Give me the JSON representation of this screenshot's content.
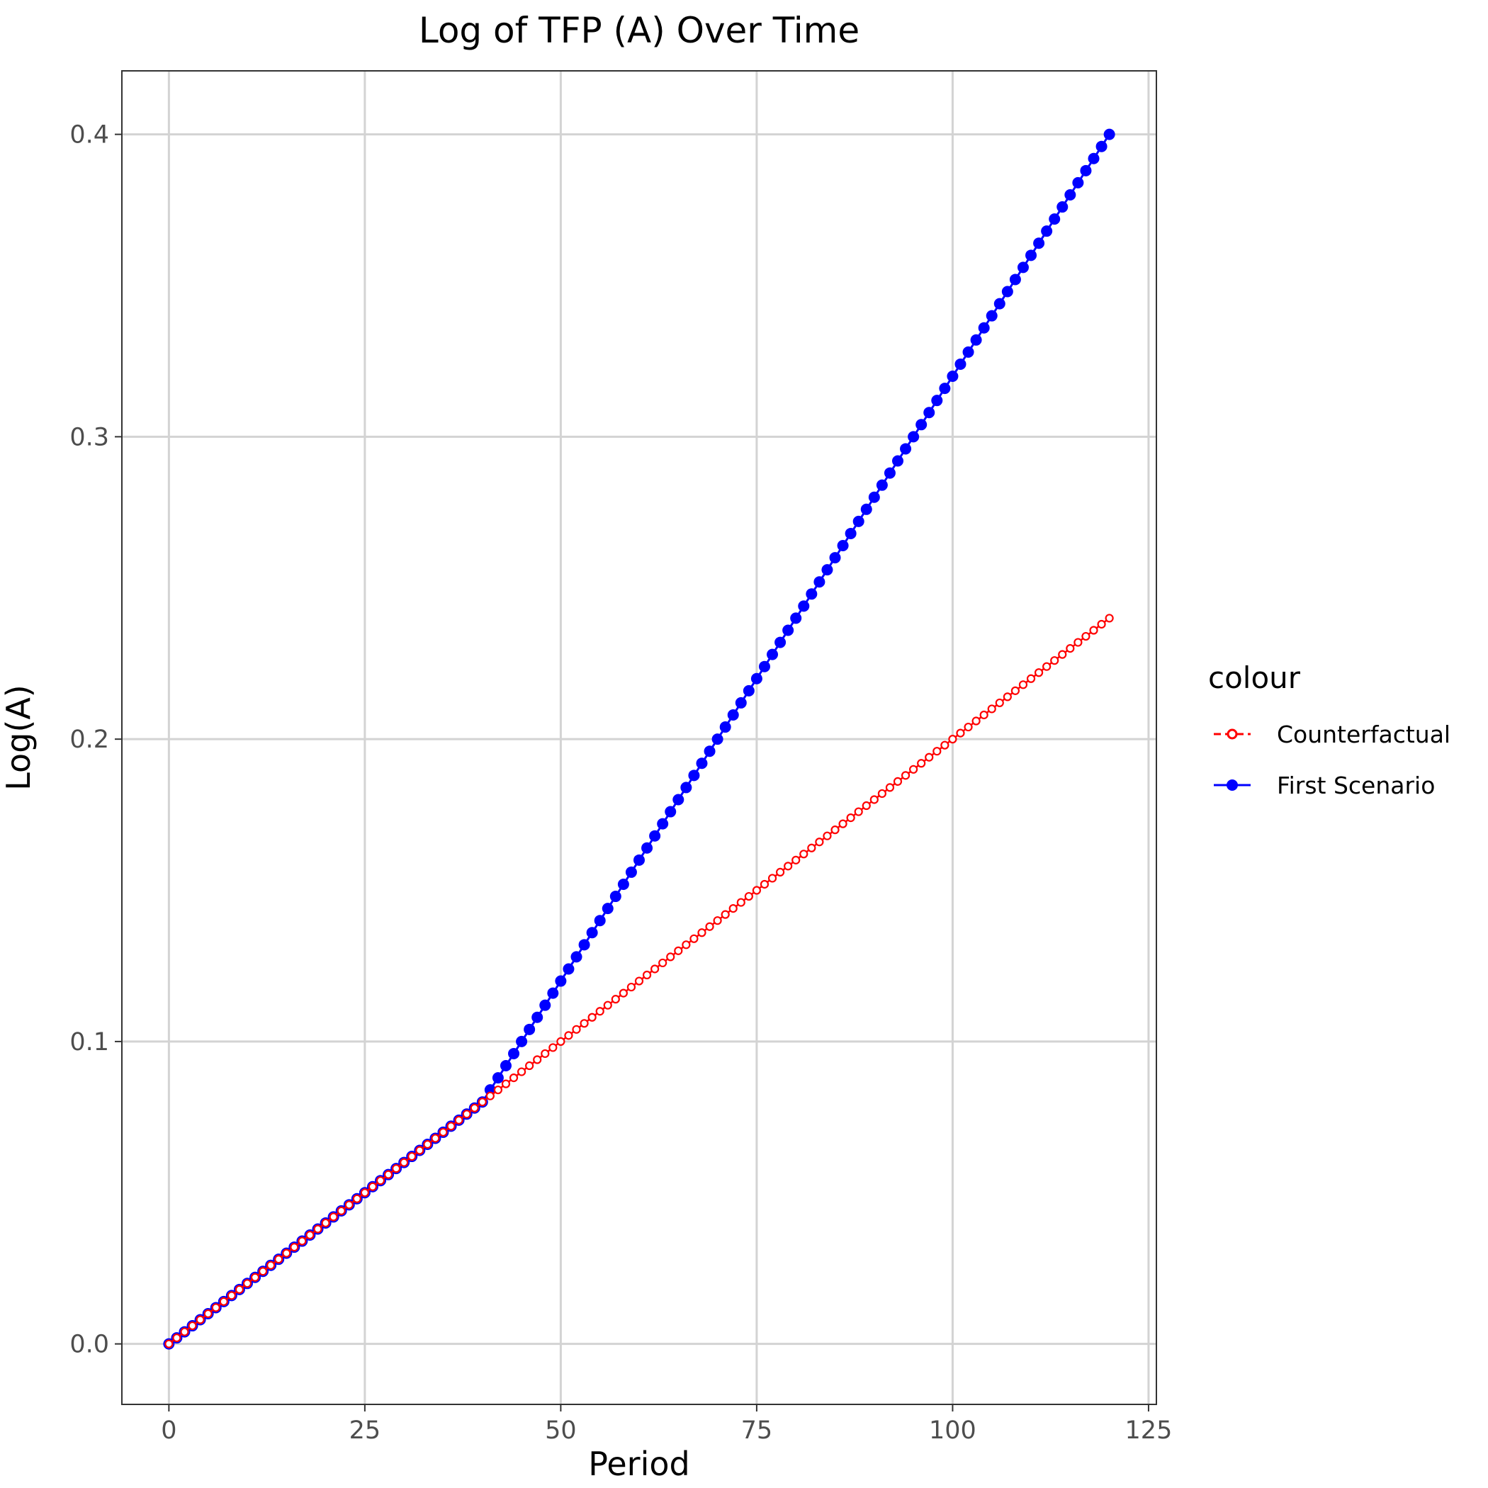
{
  "chart_data": {
    "type": "line",
    "title": "Log of TFP (A) Over Time",
    "xlabel": "Period",
    "ylabel": "Log(A)",
    "xlim": [
      -6,
      126
    ],
    "ylim": [
      -0.02,
      0.421
    ],
    "x_ticks": [
      0,
      25,
      50,
      75,
      100,
      125
    ],
    "y_ticks": [
      0.0,
      0.1,
      0.2,
      0.3,
      0.4
    ],
    "x_tick_labels": [
      "0",
      "25",
      "50",
      "75",
      "100",
      "125"
    ],
    "y_tick_labels": [
      "0.0",
      "0.1",
      "0.2",
      "0.3",
      "0.4"
    ],
    "grid": true,
    "legend": {
      "title": "colour",
      "placement": "right"
    },
    "x_range": [
      0,
      120
    ],
    "series": [
      {
        "name": "Counterfactual",
        "color": "#ff0000",
        "line_style": "dashed",
        "marker": "open-circle",
        "generator": "y = 0.002 * x",
        "values_sampled": {
          "0": 0.0,
          "20": 0.04,
          "40": 0.08,
          "50": 0.1,
          "60": 0.12,
          "80": 0.16,
          "100": 0.2,
          "120": 0.24
        }
      },
      {
        "name": "First Scenario",
        "color": "#0000ff",
        "line_style": "solid",
        "marker": "filled-circle",
        "generator": "y = 0.002 * x for x <= 40; y = 0.08 + 0.004 * (x - 40) for x > 40",
        "values_sampled": {
          "0": 0.0,
          "20": 0.04,
          "40": 0.08,
          "50": 0.12,
          "60": 0.16,
          "75": 0.22,
          "100": 0.32,
          "120": 0.4
        }
      }
    ]
  }
}
